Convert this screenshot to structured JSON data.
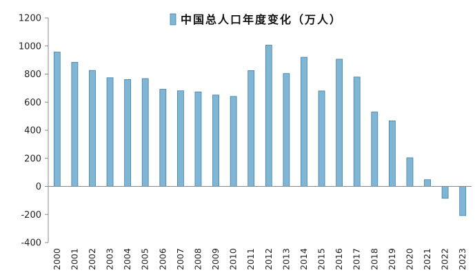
{
  "chart_data": {
    "type": "bar",
    "title": "",
    "xlabel": "",
    "ylabel": "",
    "legend": {
      "label": "中国总人口年度变化（万人）",
      "placement": "top"
    },
    "categories": [
      "2000",
      "2001",
      "2002",
      "2003",
      "2004",
      "2005",
      "2006",
      "2007",
      "2008",
      "2009",
      "2010",
      "2011",
      "2012",
      "2013",
      "2014",
      "2015",
      "2016",
      "2017",
      "2018",
      "2019",
      "2020",
      "2021",
      "2022",
      "2023"
    ],
    "series": [
      {
        "name": "中国总人口年度变化（万人）",
        "values": [
          957,
          884,
          826,
          774,
          761,
          768,
          692,
          681,
          673,
          651,
          641,
          825,
          1006,
          804,
          920,
          680,
          906,
          779,
          530,
          467,
          204,
          48,
          -85,
          -208
        ]
      }
    ],
    "ylim": [
      -400,
      1200
    ],
    "yticks": [
      -400,
      -200,
      0,
      200,
      400,
      600,
      800,
      1000,
      1200
    ],
    "grid": false,
    "colors": {
      "bar": "#7fb6d6",
      "bar_edge": "#3f7fa6",
      "axis": "#888888"
    }
  }
}
